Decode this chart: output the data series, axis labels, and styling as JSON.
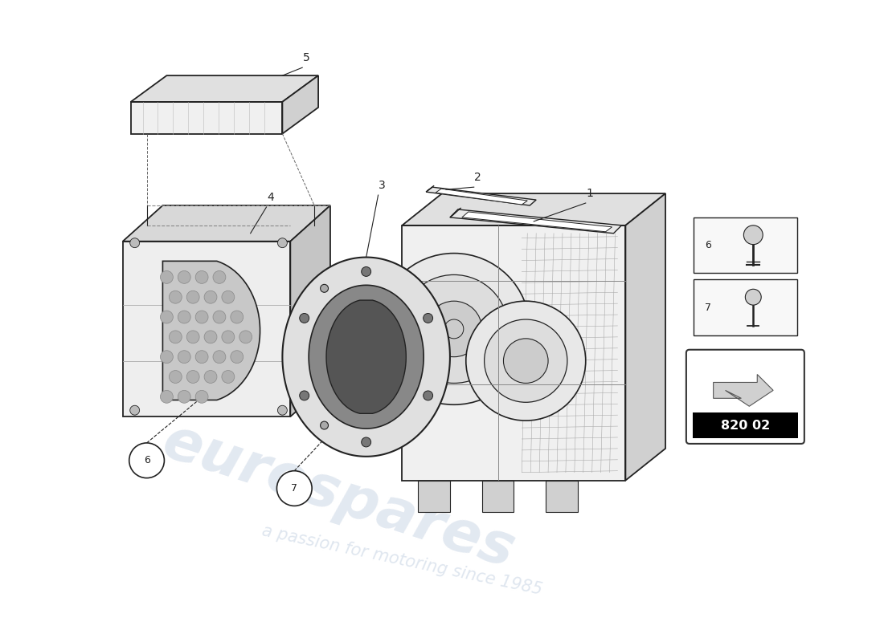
{
  "background_color": "#ffffff",
  "part_number": "820 02",
  "watermark_line1": "eurospares",
  "watermark_line2": "a passion for motoring since 1985",
  "line_color": "#222222",
  "light_gray": "#e8e8e8",
  "mid_gray": "#cccccc",
  "dark_gray": "#999999",
  "label_color": "#000000"
}
